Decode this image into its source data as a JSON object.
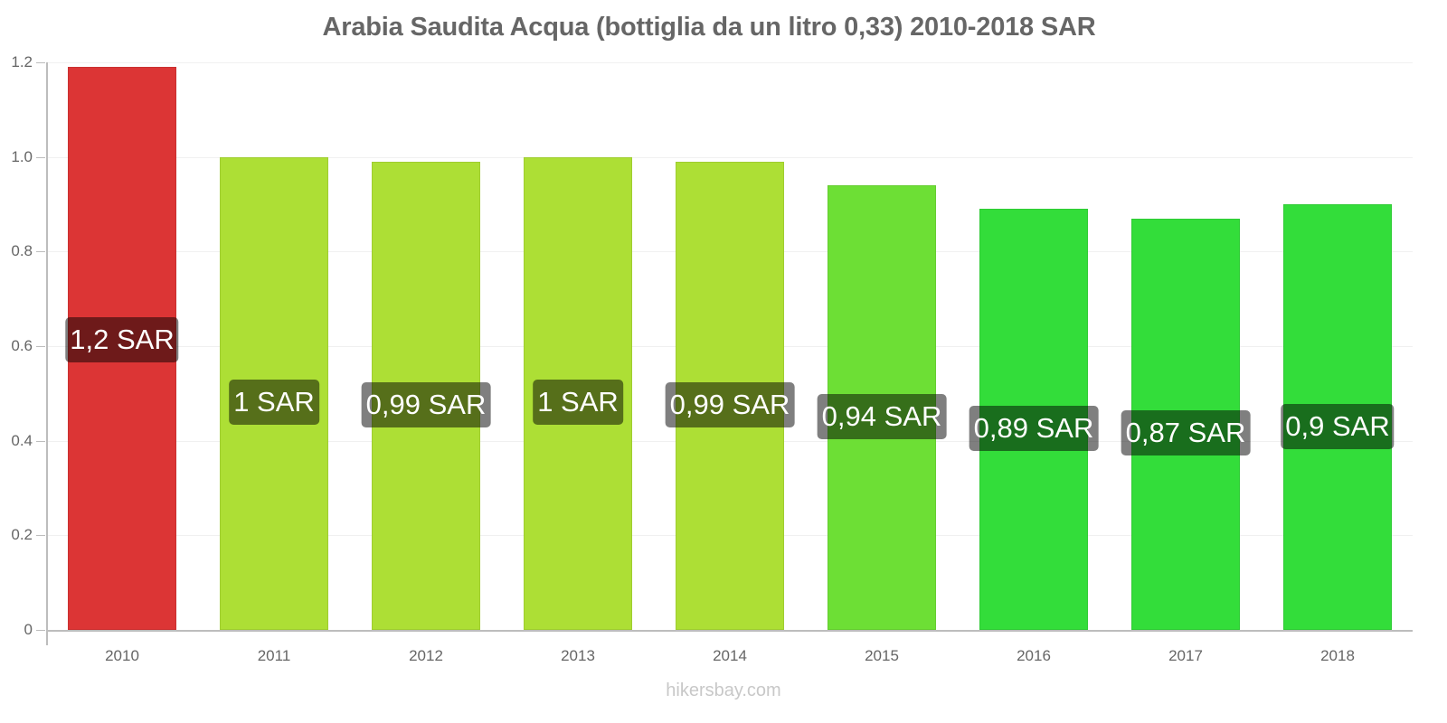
{
  "chart_data": {
    "type": "bar",
    "title": "Arabia Saudita Acqua (bottiglia da un litro 0,33) 2010-2018 SAR",
    "xlabel": "",
    "ylabel": "",
    "categories": [
      "2010",
      "2011",
      "2012",
      "2013",
      "2014",
      "2015",
      "2016",
      "2017",
      "2018"
    ],
    "values": [
      1.19,
      1.0,
      0.99,
      1.0,
      0.99,
      0.94,
      0.89,
      0.87,
      0.9
    ],
    "value_labels": [
      "1,2 SAR",
      "1 SAR",
      "0,99 SAR",
      "1 SAR",
      "0,99 SAR",
      "0,94 SAR",
      "0,89 SAR",
      "0,87 SAR",
      "0,9 SAR"
    ],
    "bar_colors": [
      "#dc3535",
      "#addf35",
      "#addf35",
      "#addf35",
      "#addf35",
      "#6ddf35",
      "#33dd3a",
      "#33dd3a",
      "#33dd3a"
    ],
    "ylim": [
      0,
      1.2
    ],
    "yticks": [
      "0",
      "0.2",
      "0.4",
      "0.6",
      "0.8",
      "1.0",
      "1.2"
    ],
    "grid": true,
    "legend": null
  },
  "watermark": "hikersbay.com"
}
